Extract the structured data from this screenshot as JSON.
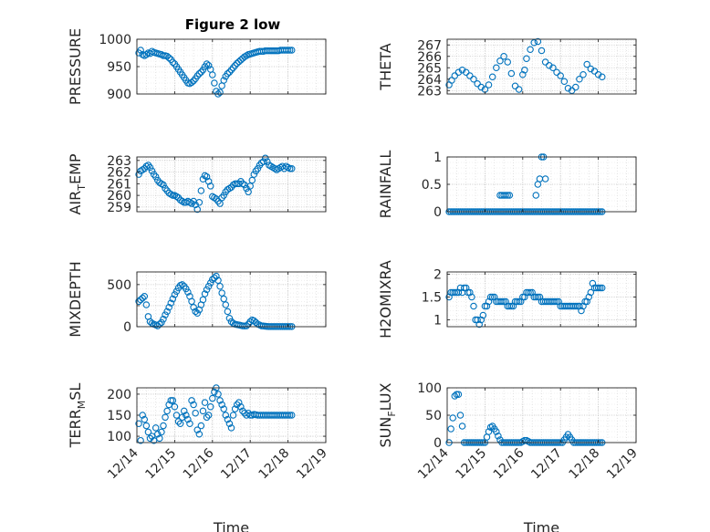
{
  "figure": {
    "title": "Figure 2 low"
  },
  "chart_data": [
    {
      "type": "scatter",
      "panel": "PRESSURE",
      "title": "Figure 2 low",
      "ylabel": "PRESSURE",
      "ylabel_sub": "",
      "ylabel_tail": "",
      "xlabel": "",
      "ylim": [
        900,
        1000
      ],
      "yticks": [
        900,
        950,
        1000
      ],
      "x": [
        0.05,
        0.1,
        0.15,
        0.2,
        0.25,
        0.3,
        0.35,
        0.4,
        0.45,
        0.5,
        0.55,
        0.6,
        0.65,
        0.7,
        0.75,
        0.8,
        0.85,
        0.9,
        0.95,
        1.0,
        1.05,
        1.1,
        1.15,
        1.2,
        1.25,
        1.3,
        1.35,
        1.4,
        1.45,
        1.5,
        1.55,
        1.6,
        1.65,
        1.7,
        1.75,
        1.8,
        1.85,
        1.9,
        1.95,
        2.0,
        2.05,
        2.1,
        2.15,
        2.2,
        2.25,
        2.3,
        2.35,
        2.4,
        2.45,
        2.5,
        2.55,
        2.6,
        2.65,
        2.7,
        2.75,
        2.8,
        2.85,
        2.9,
        2.95,
        3.0,
        3.05,
        3.1,
        3.15,
        3.2,
        3.25,
        3.3,
        3.35,
        3.4,
        3.45,
        3.5,
        3.55,
        3.6,
        3.65,
        3.7,
        3.75,
        3.8,
        3.85,
        3.9,
        3.95,
        4.0,
        4.05,
        4.1
      ],
      "y": [
        975,
        980,
        972,
        970,
        972,
        975,
        974,
        978,
        976,
        975,
        974,
        973,
        972,
        970,
        970,
        969,
        966,
        963,
        958,
        955,
        950,
        945,
        940,
        935,
        930,
        925,
        920,
        919,
        921,
        924,
        928,
        933,
        937,
        940,
        944,
        950,
        955,
        952,
        945,
        935,
        920,
        905,
        900,
        903,
        915,
        925,
        932,
        937,
        940,
        944,
        948,
        952,
        956,
        959,
        962,
        965,
        968,
        970,
        972,
        973,
        974,
        975,
        976,
        977,
        978,
        978,
        978,
        979,
        979,
        979,
        979,
        979,
        979,
        979,
        979,
        980,
        980,
        980,
        980,
        980,
        980,
        980
      ]
    },
    {
      "type": "scatter",
      "panel": "THETA",
      "ylabel": "THETA",
      "ylabel_sub": "",
      "ylabel_tail": "",
      "xlabel": "",
      "ylim": [
        262.7,
        267.5
      ],
      "yticks": [
        263,
        264,
        265,
        266,
        267
      ],
      "x": [
        0.05,
        0.12,
        0.2,
        0.3,
        0.4,
        0.5,
        0.6,
        0.7,
        0.8,
        0.9,
        1.0,
        1.1,
        1.2,
        1.3,
        1.4,
        1.5,
        1.6,
        1.7,
        1.8,
        1.9,
        2.0,
        2.05,
        2.1,
        2.2,
        2.3,
        2.4,
        2.5,
        2.6,
        2.7,
        2.8,
        2.9,
        3.0,
        3.1,
        3.2,
        3.3,
        3.4,
        3.5,
        3.6,
        3.7,
        3.8,
        3.9,
        4.0,
        4.1
      ],
      "y": [
        263.5,
        263.9,
        264.3,
        264.6,
        264.8,
        264.6,
        264.3,
        264.0,
        263.6,
        263.3,
        263.1,
        263.5,
        264.2,
        265.0,
        265.6,
        266.0,
        265.5,
        264.5,
        263.4,
        263.1,
        264.4,
        264.8,
        265.8,
        266.6,
        267.2,
        267.3,
        266.5,
        265.5,
        265.2,
        265.0,
        264.6,
        264.3,
        263.8,
        263.2,
        263.0,
        263.3,
        264.0,
        264.4,
        265.3,
        264.9,
        264.7,
        264.4,
        264.2
      ]
    },
    {
      "type": "scatter",
      "panel": "AIR_TEMP",
      "ylabel": "AIR",
      "ylabel_sub": "T",
      "ylabel_tail": "EMP",
      "xlabel": "",
      "ylim": [
        258.6,
        263.3
      ],
      "yticks": [
        259,
        260,
        261,
        262,
        263
      ],
      "x": [
        0.05,
        0.1,
        0.15,
        0.2,
        0.25,
        0.3,
        0.35,
        0.4,
        0.45,
        0.5,
        0.55,
        0.6,
        0.65,
        0.7,
        0.75,
        0.8,
        0.85,
        0.9,
        0.95,
        1.0,
        1.05,
        1.1,
        1.15,
        1.2,
        1.25,
        1.3,
        1.35,
        1.4,
        1.45,
        1.5,
        1.55,
        1.6,
        1.65,
        1.7,
        1.75,
        1.8,
        1.85,
        1.9,
        1.95,
        2.0,
        2.05,
        2.1,
        2.15,
        2.2,
        2.25,
        2.3,
        2.35,
        2.4,
        2.45,
        2.5,
        2.55,
        2.6,
        2.65,
        2.7,
        2.75,
        2.8,
        2.85,
        2.9,
        2.95,
        3.0,
        3.05,
        3.1,
        3.15,
        3.2,
        3.25,
        3.3,
        3.35,
        3.4,
        3.45,
        3.5,
        3.55,
        3.6,
        3.65,
        3.7,
        3.75,
        3.8,
        3.85,
        3.9,
        3.95,
        4.0,
        4.05,
        4.1
      ],
      "y": [
        261.8,
        262.1,
        262.2,
        262.3,
        262.5,
        262.6,
        262.4,
        262.1,
        261.8,
        261.6,
        261.3,
        261.1,
        261.0,
        260.9,
        260.6,
        260.4,
        260.2,
        260.1,
        260.0,
        260.0,
        259.9,
        259.8,
        259.6,
        259.5,
        259.4,
        259.4,
        259.5,
        259.4,
        259.3,
        259.5,
        259.2,
        258.8,
        259.4,
        260.4,
        261.4,
        261.7,
        261.6,
        261.2,
        260.8,
        259.9,
        259.8,
        259.7,
        259.5,
        259.3,
        259.8,
        260.0,
        260.3,
        260.5,
        260.6,
        260.7,
        260.9,
        261.0,
        261.0,
        261.0,
        261.2,
        261.0,
        260.9,
        260.6,
        260.3,
        260.8,
        261.3,
        261.8,
        262.1,
        262.3,
        262.6,
        262.8,
        262.9,
        263.2,
        262.9,
        262.6,
        262.5,
        262.4,
        262.3,
        262.2,
        262.3,
        262.4,
        262.5,
        262.3,
        262.5,
        262.4,
        262.3,
        262.3
      ]
    },
    {
      "type": "scatter",
      "panel": "RAINFALL",
      "ylabel": "RAINFALL",
      "ylabel_sub": "",
      "ylabel_tail": "",
      "xlabel": "",
      "ylim": [
        0,
        1
      ],
      "yticks": [
        0,
        0.5,
        1
      ],
      "yticklabels": [
        "0",
        "0.5",
        "1"
      ],
      "x": [
        0.05,
        0.1,
        0.15,
        0.2,
        0.25,
        0.3,
        0.35,
        0.4,
        0.45,
        0.5,
        0.55,
        0.6,
        0.65,
        0.7,
        0.75,
        0.8,
        0.85,
        0.9,
        0.95,
        1.0,
        1.05,
        1.1,
        1.15,
        1.2,
        1.25,
        1.3,
        1.35,
        1.4,
        1.45,
        1.5,
        1.55,
        1.6,
        1.65,
        1.7,
        1.75,
        1.8,
        1.85,
        1.9,
        1.95,
        2.0,
        2.05,
        2.1,
        2.15,
        2.2,
        2.25,
        2.3,
        2.35,
        2.4,
        2.45,
        2.5,
        2.55,
        2.6,
        2.65,
        2.7,
        2.75,
        2.8,
        2.85,
        2.9,
        2.95,
        3.0,
        3.05,
        3.1,
        3.15,
        3.2,
        3.25,
        3.3,
        3.35,
        3.4,
        3.45,
        3.5,
        3.55,
        3.6,
        3.65,
        3.7,
        3.75,
        3.8,
        3.85,
        3.9,
        3.95,
        4.0,
        4.05,
        4.1,
        1.4,
        1.45,
        1.5,
        1.55,
        1.6,
        1.65,
        2.35,
        2.4,
        2.45,
        2.5,
        2.55,
        2.6
      ],
      "y": [
        0,
        0,
        0,
        0,
        0,
        0,
        0,
        0,
        0,
        0,
        0,
        0,
        0,
        0,
        0,
        0,
        0,
        0,
        0,
        0,
        0,
        0,
        0,
        0,
        0,
        0,
        0,
        0,
        0,
        0,
        0,
        0,
        0,
        0,
        0,
        0,
        0,
        0,
        0,
        0,
        0,
        0,
        0,
        0,
        0,
        0,
        0,
        0,
        0,
        0,
        0,
        0,
        0,
        0,
        0,
        0,
        0,
        0,
        0,
        0,
        0,
        0,
        0,
        0,
        0,
        0,
        0,
        0,
        0,
        0,
        0,
        0,
        0,
        0,
        0,
        0,
        0,
        0,
        0,
        0,
        0,
        0,
        0.3,
        0.3,
        0.3,
        0.3,
        0.3,
        0.3,
        0.3,
        0.5,
        0.6,
        1.0,
        1.0,
        0.6
      ]
    },
    {
      "type": "scatter",
      "panel": "MIXDEPTH",
      "ylabel": "MIXDEPTH",
      "ylabel_sub": "",
      "ylabel_tail": "",
      "xlabel": "",
      "ylim": [
        0,
        650
      ],
      "yticks": [
        0,
        250,
        500
      ],
      "yticklabels": [
        "0",
        "",
        "500"
      ],
      "x": [
        0.05,
        0.1,
        0.15,
        0.2,
        0.25,
        0.3,
        0.35,
        0.4,
        0.45,
        0.5,
        0.55,
        0.6,
        0.65,
        0.7,
        0.75,
        0.8,
        0.85,
        0.9,
        0.95,
        1.0,
        1.05,
        1.1,
        1.15,
        1.2,
        1.25,
        1.3,
        1.35,
        1.4,
        1.45,
        1.5,
        1.55,
        1.6,
        1.65,
        1.7,
        1.75,
        1.8,
        1.85,
        1.9,
        1.95,
        2.0,
        2.05,
        2.1,
        2.15,
        2.2,
        2.25,
        2.3,
        2.35,
        2.4,
        2.45,
        2.5,
        2.55,
        2.6,
        2.65,
        2.7,
        2.75,
        2.8,
        2.85,
        2.9,
        2.95,
        3.0,
        3.05,
        3.1,
        3.15,
        3.2,
        3.25,
        3.3,
        3.35,
        3.4,
        3.45,
        3.5,
        3.55,
        3.6,
        3.65,
        3.7,
        3.75,
        3.8,
        3.85,
        3.9,
        3.95,
        4.0,
        4.05,
        4.1
      ],
      "y": [
        300,
        320,
        340,
        360,
        260,
        120,
        60,
        40,
        30,
        20,
        10,
        30,
        50,
        90,
        140,
        180,
        230,
        280,
        330,
        380,
        420,
        460,
        490,
        500,
        480,
        450,
        410,
        360,
        300,
        230,
        180,
        160,
        200,
        260,
        320,
        390,
        440,
        480,
        520,
        560,
        580,
        600,
        550,
        480,
        400,
        330,
        260,
        180,
        100,
        60,
        40,
        30,
        25,
        20,
        15,
        10,
        8,
        10,
        30,
        60,
        80,
        70,
        50,
        30,
        20,
        10,
        8,
        5,
        3,
        2,
        2,
        2,
        2,
        2,
        2,
        2,
        2,
        2,
        2,
        2,
        2,
        2
      ]
    },
    {
      "type": "scatter",
      "panel": "H2OMIXRA",
      "ylabel": "H2OMIXRA",
      "ylabel_sub": "",
      "ylabel_tail": "",
      "xlabel": "",
      "ylim": [
        0.85,
        2.05
      ],
      "yticks": [
        1,
        1.5,
        2
      ],
      "x": [
        0.05,
        0.1,
        0.15,
        0.2,
        0.25,
        0.3,
        0.35,
        0.4,
        0.45,
        0.5,
        0.55,
        0.6,
        0.65,
        0.7,
        0.75,
        0.8,
        0.85,
        0.9,
        0.95,
        1.0,
        1.05,
        1.1,
        1.15,
        1.2,
        1.25,
        1.3,
        1.35,
        1.4,
        1.45,
        1.5,
        1.55,
        1.6,
        1.65,
        1.7,
        1.75,
        1.8,
        1.85,
        1.9,
        1.95,
        2.0,
        2.05,
        2.1,
        2.15,
        2.2,
        2.25,
        2.3,
        2.35,
        2.4,
        2.45,
        2.5,
        2.55,
        2.6,
        2.65,
        2.7,
        2.75,
        2.8,
        2.85,
        2.9,
        2.95,
        3.0,
        3.05,
        3.1,
        3.15,
        3.2,
        3.25,
        3.3,
        3.35,
        3.4,
        3.45,
        3.5,
        3.55,
        3.6,
        3.65,
        3.7,
        3.75,
        3.8,
        3.85,
        3.9,
        3.95,
        4.0,
        4.05,
        4.1
      ],
      "y": [
        1.5,
        1.6,
        1.6,
        1.6,
        1.6,
        1.6,
        1.7,
        1.6,
        1.7,
        1.7,
        1.6,
        1.6,
        1.5,
        1.3,
        1.0,
        1.0,
        0.9,
        1.0,
        1.1,
        1.3,
        1.3,
        1.4,
        1.5,
        1.5,
        1.5,
        1.4,
        1.4,
        1.4,
        1.4,
        1.4,
        1.4,
        1.3,
        1.3,
        1.3,
        1.3,
        1.4,
        1.4,
        1.4,
        1.4,
        1.5,
        1.5,
        1.6,
        1.6,
        1.6,
        1.6,
        1.5,
        1.5,
        1.5,
        1.5,
        1.4,
        1.4,
        1.4,
        1.4,
        1.4,
        1.4,
        1.4,
        1.4,
        1.4,
        1.4,
        1.3,
        1.3,
        1.3,
        1.3,
        1.3,
        1.3,
        1.3,
        1.3,
        1.3,
        1.3,
        1.3,
        1.2,
        1.3,
        1.4,
        1.4,
        1.5,
        1.6,
        1.8,
        1.7,
        1.7,
        1.7,
        1.7,
        1.7
      ]
    },
    {
      "type": "scatter",
      "panel": "TERR_MSL",
      "ylabel": "TERR",
      "ylabel_sub": "M",
      "ylabel_tail": "SL",
      "xlabel": "Time",
      "ylim": [
        85,
        215
      ],
      "yticks": [
        100,
        150,
        200
      ],
      "xticklabels": [
        "12/14",
        "12/15",
        "12/16",
        "12/17",
        "12/18",
        "12/19"
      ],
      "x": [
        0.05,
        0.1,
        0.15,
        0.2,
        0.25,
        0.3,
        0.35,
        0.4,
        0.45,
        0.5,
        0.55,
        0.6,
        0.65,
        0.7,
        0.75,
        0.8,
        0.85,
        0.9,
        0.95,
        1.0,
        1.05,
        1.1,
        1.15,
        1.2,
        1.25,
        1.3,
        1.35,
        1.4,
        1.45,
        1.5,
        1.55,
        1.6,
        1.65,
        1.7,
        1.75,
        1.8,
        1.85,
        1.9,
        1.95,
        2.0,
        2.05,
        2.1,
        2.15,
        2.2,
        2.25,
        2.3,
        2.35,
        2.4,
        2.45,
        2.5,
        2.55,
        2.6,
        2.65,
        2.7,
        2.75,
        2.8,
        2.85,
        2.9,
        2.95,
        3.0,
        3.05,
        3.1,
        3.15,
        3.2,
        3.25,
        3.3,
        3.35,
        3.4,
        3.45,
        3.5,
        3.55,
        3.6,
        3.65,
        3.7,
        3.75,
        3.8,
        3.85,
        3.9,
        3.95,
        4.0,
        4.05,
        4.1
      ],
      "y": [
        130,
        90,
        150,
        140,
        125,
        110,
        95,
        100,
        90,
        120,
        105,
        95,
        110,
        125,
        145,
        160,
        175,
        185,
        185,
        170,
        150,
        135,
        130,
        145,
        160,
        150,
        140,
        130,
        185,
        175,
        155,
        115,
        105,
        125,
        160,
        180,
        145,
        150,
        170,
        190,
        205,
        215,
        200,
        185,
        175,
        165,
        150,
        140,
        130,
        120,
        150,
        165,
        175,
        180,
        170,
        160,
        155,
        150,
        155,
        150,
        150,
        152,
        151,
        150,
        150,
        150,
        150,
        150,
        150,
        150,
        150,
        150,
        150,
        150,
        150,
        150,
        150,
        150,
        150,
        150,
        150,
        150
      ]
    },
    {
      "type": "scatter",
      "panel": "SUN_FLUX",
      "ylabel": "SUN",
      "ylabel_sub": "F",
      "ylabel_tail": "LUX",
      "xlabel": "Time",
      "ylim": [
        0,
        100
      ],
      "yticks": [
        0,
        50,
        100
      ],
      "xticklabels": [
        "12/14",
        "12/15",
        "12/16",
        "12/17",
        "12/18",
        "12/19"
      ],
      "x": [
        0.05,
        0.1,
        0.15,
        0.2,
        0.25,
        0.3,
        0.35,
        0.4,
        0.45,
        0.5,
        0.55,
        0.6,
        0.65,
        0.7,
        0.75,
        0.8,
        0.85,
        0.9,
        0.95,
        1.0,
        1.05,
        1.1,
        1.15,
        1.2,
        1.25,
        1.3,
        1.35,
        1.4,
        1.45,
        1.5,
        1.55,
        1.6,
        1.65,
        1.7,
        1.75,
        1.8,
        1.85,
        1.9,
        1.95,
        2.0,
        2.05,
        2.1,
        2.15,
        2.2,
        2.25,
        2.3,
        2.35,
        2.4,
        2.45,
        2.5,
        2.55,
        2.6,
        2.65,
        2.7,
        2.75,
        2.8,
        2.85,
        2.9,
        2.95,
        3.0,
        3.05,
        3.1,
        3.15,
        3.2,
        3.25,
        3.3,
        3.35,
        3.4,
        3.45,
        3.5,
        3.55,
        3.6,
        3.65,
        3.7,
        3.75,
        3.8,
        3.85,
        3.9,
        3.95,
        4.0,
        4.05,
        4.1
      ],
      "y": [
        0,
        25,
        45,
        85,
        88,
        88,
        50,
        30,
        0,
        0,
        0,
        0,
        0,
        0,
        0,
        0,
        0,
        0,
        0,
        0,
        10,
        20,
        28,
        30,
        25,
        20,
        12,
        5,
        0,
        0,
        0,
        0,
        0,
        0,
        0,
        0,
        0,
        0,
        0,
        2,
        4,
        4,
        2,
        0,
        0,
        0,
        0,
        0,
        0,
        0,
        0,
        0,
        0,
        0,
        0,
        0,
        0,
        0,
        0,
        0,
        0,
        5,
        10,
        15,
        10,
        5,
        0,
        0,
        0,
        0,
        0,
        0,
        0,
        0,
        0,
        0,
        0,
        0,
        0,
        0,
        0,
        0
      ]
    }
  ]
}
